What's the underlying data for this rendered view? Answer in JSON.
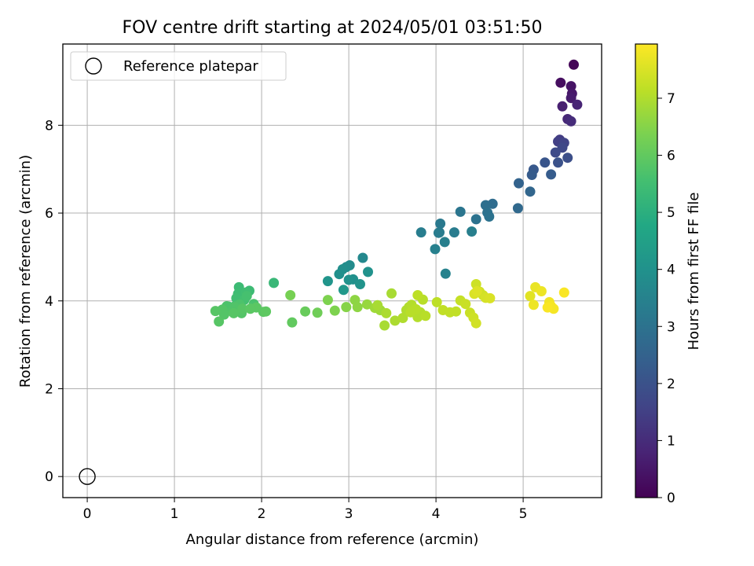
{
  "chart_data": {
    "type": "scatter",
    "title": "FOV centre drift starting at 2024/05/01 03:51:50",
    "xlabel": "Angular distance from reference (arcmin)",
    "ylabel": "Rotation from reference (arcmin)",
    "xlim": [
      -0.28,
      5.9
    ],
    "ylim": [
      -0.48,
      9.85
    ],
    "xticks": [
      0,
      1,
      2,
      3,
      4,
      5
    ],
    "yticks": [
      0,
      2,
      4,
      6,
      8
    ],
    "grid": true,
    "legend": {
      "placement": "top-left",
      "entries": [
        "Reference platepar"
      ]
    },
    "reference_point": {
      "label": "Reference platepar",
      "x": 0,
      "y": 0
    },
    "colorbar": {
      "label": "Hours from first FF file",
      "colormap": "viridis",
      "range": [
        0,
        7.95
      ],
      "ticks": [
        0,
        1,
        2,
        3,
        4,
        5,
        6,
        7
      ]
    },
    "series": [
      {
        "x": [
          5.58,
          5.43,
          5.55,
          5.56,
          5.55,
          5.45,
          5.62,
          5.51,
          5.55,
          5.42,
          5.4,
          5.47,
          5.45,
          5.37,
          5.51,
          5.4,
          5.25,
          5.12,
          5.1,
          5.32,
          4.95,
          5.08,
          4.94,
          4.65,
          4.57,
          4.59,
          4.61,
          4.46,
          4.28,
          4.05,
          4.04,
          4.21,
          4.03,
          3.83,
          4.1,
          4.41,
          3.99,
          4.11,
          3.16,
          3.01,
          2.97,
          2.93,
          2.89,
          3.05,
          3.22,
          3.0,
          3.13,
          2.76,
          2.94,
          2.14,
          1.74,
          1.86,
          1.73,
          1.82,
          1.71,
          1.8,
          1.83,
          1.7,
          1.62,
          1.64,
          1.91,
          1.6,
          1.75,
          1.69,
          1.66,
          1.77,
          1.55,
          1.57,
          1.47,
          1.51,
          1.78,
          1.68,
          1.94,
          1.87,
          2.02,
          2.05,
          2.35,
          2.5,
          2.64,
          2.33,
          2.76,
          2.84,
          2.97,
          3.07,
          3.1,
          3.21,
          3.3,
          3.36,
          3.33,
          3.41,
          3.49,
          3.43,
          3.53,
          3.62,
          3.66,
          3.69,
          3.74,
          3.79,
          3.72,
          3.82,
          3.88,
          3.85,
          3.77,
          3.71,
          3.79,
          4.01,
          4.08,
          4.16,
          4.23,
          4.28,
          4.34,
          4.39,
          4.46,
          4.43,
          4.46,
          4.5,
          4.54,
          4.57,
          4.62,
          4.44,
          4.47,
          5.08,
          5.14,
          5.21,
          5.12,
          5.3,
          5.32,
          5.35,
          5.47,
          5.28
        ],
        "y": [
          9.38,
          8.97,
          8.89,
          8.72,
          8.62,
          8.43,
          8.47,
          8.14,
          8.09,
          7.67,
          7.63,
          7.6,
          7.49,
          7.38,
          7.26,
          7.15,
          7.15,
          6.99,
          6.87,
          6.88,
          6.68,
          6.49,
          6.11,
          6.21,
          6.18,
          6.01,
          5.92,
          5.86,
          6.03,
          5.76,
          5.56,
          5.56,
          5.55,
          5.56,
          5.34,
          5.58,
          5.18,
          4.62,
          4.98,
          4.81,
          4.77,
          4.72,
          4.61,
          4.49,
          4.66,
          4.48,
          4.38,
          4.45,
          4.25,
          4.41,
          4.31,
          4.23,
          4.16,
          4.19,
          4.06,
          4.02,
          4.11,
          3.89,
          3.87,
          3.78,
          3.93,
          3.88,
          3.92,
          3.86,
          3.76,
          3.72,
          3.8,
          3.69,
          3.77,
          3.53,
          3.82,
          3.72,
          3.85,
          3.82,
          3.75,
          3.76,
          3.51,
          3.76,
          3.73,
          4.13,
          4.02,
          3.78,
          3.86,
          4.02,
          3.86,
          3.92,
          3.84,
          3.79,
          3.9,
          3.44,
          4.17,
          3.72,
          3.55,
          3.61,
          3.79,
          3.86,
          3.78,
          3.63,
          3.91,
          3.74,
          3.66,
          4.03,
          3.81,
          3.74,
          4.13,
          3.97,
          3.79,
          3.74,
          3.76,
          4.01,
          3.93,
          3.73,
          4.38,
          3.62,
          3.49,
          4.21,
          4.13,
          4.07,
          4.06,
          4.16,
          4.22,
          4.11,
          4.31,
          4.22,
          3.91,
          3.97,
          3.88,
          3.82,
          4.19,
          3.85
        ],
        "hours": [
          0.1,
          0.3,
          0.4,
          0.5,
          0.6,
          0.7,
          0.8,
          0.9,
          1.0,
          1.4,
          1.5,
          1.6,
          1.7,
          1.8,
          1.9,
          2.0,
          2.1,
          2.2,
          2.3,
          2.3,
          2.5,
          2.6,
          2.7,
          2.8,
          2.9,
          2.95,
          3.0,
          3.0,
          3.1,
          3.2,
          3.25,
          3.3,
          3.3,
          3.35,
          3.4,
          3.4,
          3.45,
          3.5,
          3.7,
          3.8,
          3.85,
          3.9,
          3.95,
          3.95,
          4.0,
          4.0,
          4.05,
          4.1,
          4.2,
          5.3,
          5.4,
          5.4,
          5.45,
          5.5,
          5.5,
          5.55,
          5.6,
          5.6,
          5.6,
          5.65,
          5.65,
          5.7,
          5.7,
          5.75,
          5.75,
          5.8,
          5.8,
          5.8,
          5.85,
          5.85,
          5.85,
          5.85,
          5.9,
          5.9,
          5.9,
          5.95,
          6.0,
          6.1,
          6.2,
          6.3,
          6.4,
          6.4,
          6.5,
          6.6,
          6.6,
          6.7,
          6.8,
          6.8,
          6.9,
          6.9,
          6.9,
          6.95,
          6.95,
          7.0,
          7.0,
          7.0,
          7.05,
          7.05,
          7.05,
          7.05,
          7.1,
          7.1,
          7.1,
          7.1,
          7.15,
          7.15,
          7.2,
          7.2,
          7.2,
          7.25,
          7.3,
          7.3,
          7.35,
          7.35,
          7.4,
          7.4,
          7.4,
          7.45,
          7.5,
          7.5,
          7.55,
          7.6,
          7.7,
          7.75,
          7.75,
          7.8,
          7.85,
          7.85,
          7.9,
          7.9
        ]
      }
    ]
  }
}
